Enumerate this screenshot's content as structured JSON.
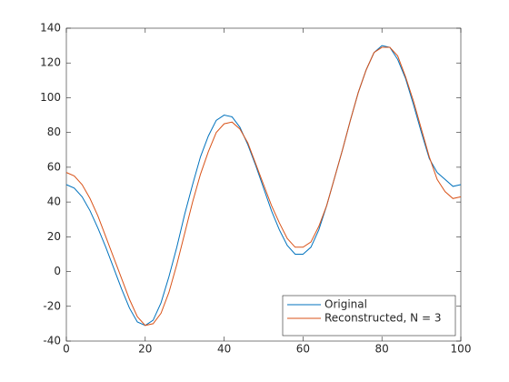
{
  "chart_data": {
    "type": "line",
    "x": [
      0,
      2,
      4,
      6,
      8,
      10,
      12,
      14,
      16,
      18,
      20,
      22,
      24,
      26,
      28,
      30,
      32,
      34,
      36,
      38,
      40,
      42,
      44,
      46,
      48,
      50,
      52,
      54,
      56,
      58,
      60,
      62,
      64,
      66,
      68,
      70,
      72,
      74,
      76,
      78,
      80,
      82,
      84,
      86,
      88,
      90,
      92,
      94,
      96,
      98,
      100
    ],
    "series": [
      {
        "name": "Original",
        "color": "#0072bd",
        "values": [
          50,
          48,
          43,
          35,
          25,
          14,
          2,
          -10,
          -21,
          -29,
          -31,
          -28,
          -18,
          -3,
          14,
          33,
          50,
          66,
          78,
          87,
          90,
          89,
          83,
          73,
          61,
          48,
          35,
          24,
          15,
          10,
          10,
          14,
          24,
          38,
          54,
          70,
          87,
          103,
          116,
          126,
          130,
          129,
          122,
          111,
          96,
          80,
          65,
          57,
          53,
          49,
          50
        ]
      },
      {
        "name": "Reconstructed, N = 3",
        "color": "#d95319",
        "values": [
          57,
          55,
          50,
          42,
          32,
          20,
          8,
          -4,
          -16,
          -26,
          -31,
          -30,
          -24,
          -12,
          4,
          22,
          40,
          56,
          69,
          80,
          85,
          86,
          82,
          74,
          62,
          50,
          38,
          28,
          19,
          14,
          14,
          17,
          26,
          38,
          54,
          70,
          87,
          103,
          116,
          126,
          129,
          129,
          124,
          112,
          98,
          82,
          66,
          53,
          46,
          42,
          43
        ]
      }
    ],
    "xlim": [
      0,
      100
    ],
    "xticks": [
      0,
      20,
      40,
      60,
      80,
      100
    ],
    "ylim": [
      -40,
      140
    ],
    "yticks": [
      -40,
      -20,
      0,
      20,
      40,
      60,
      80,
      100,
      120,
      140
    ],
    "legend": "southeast",
    "grid": false
  }
}
